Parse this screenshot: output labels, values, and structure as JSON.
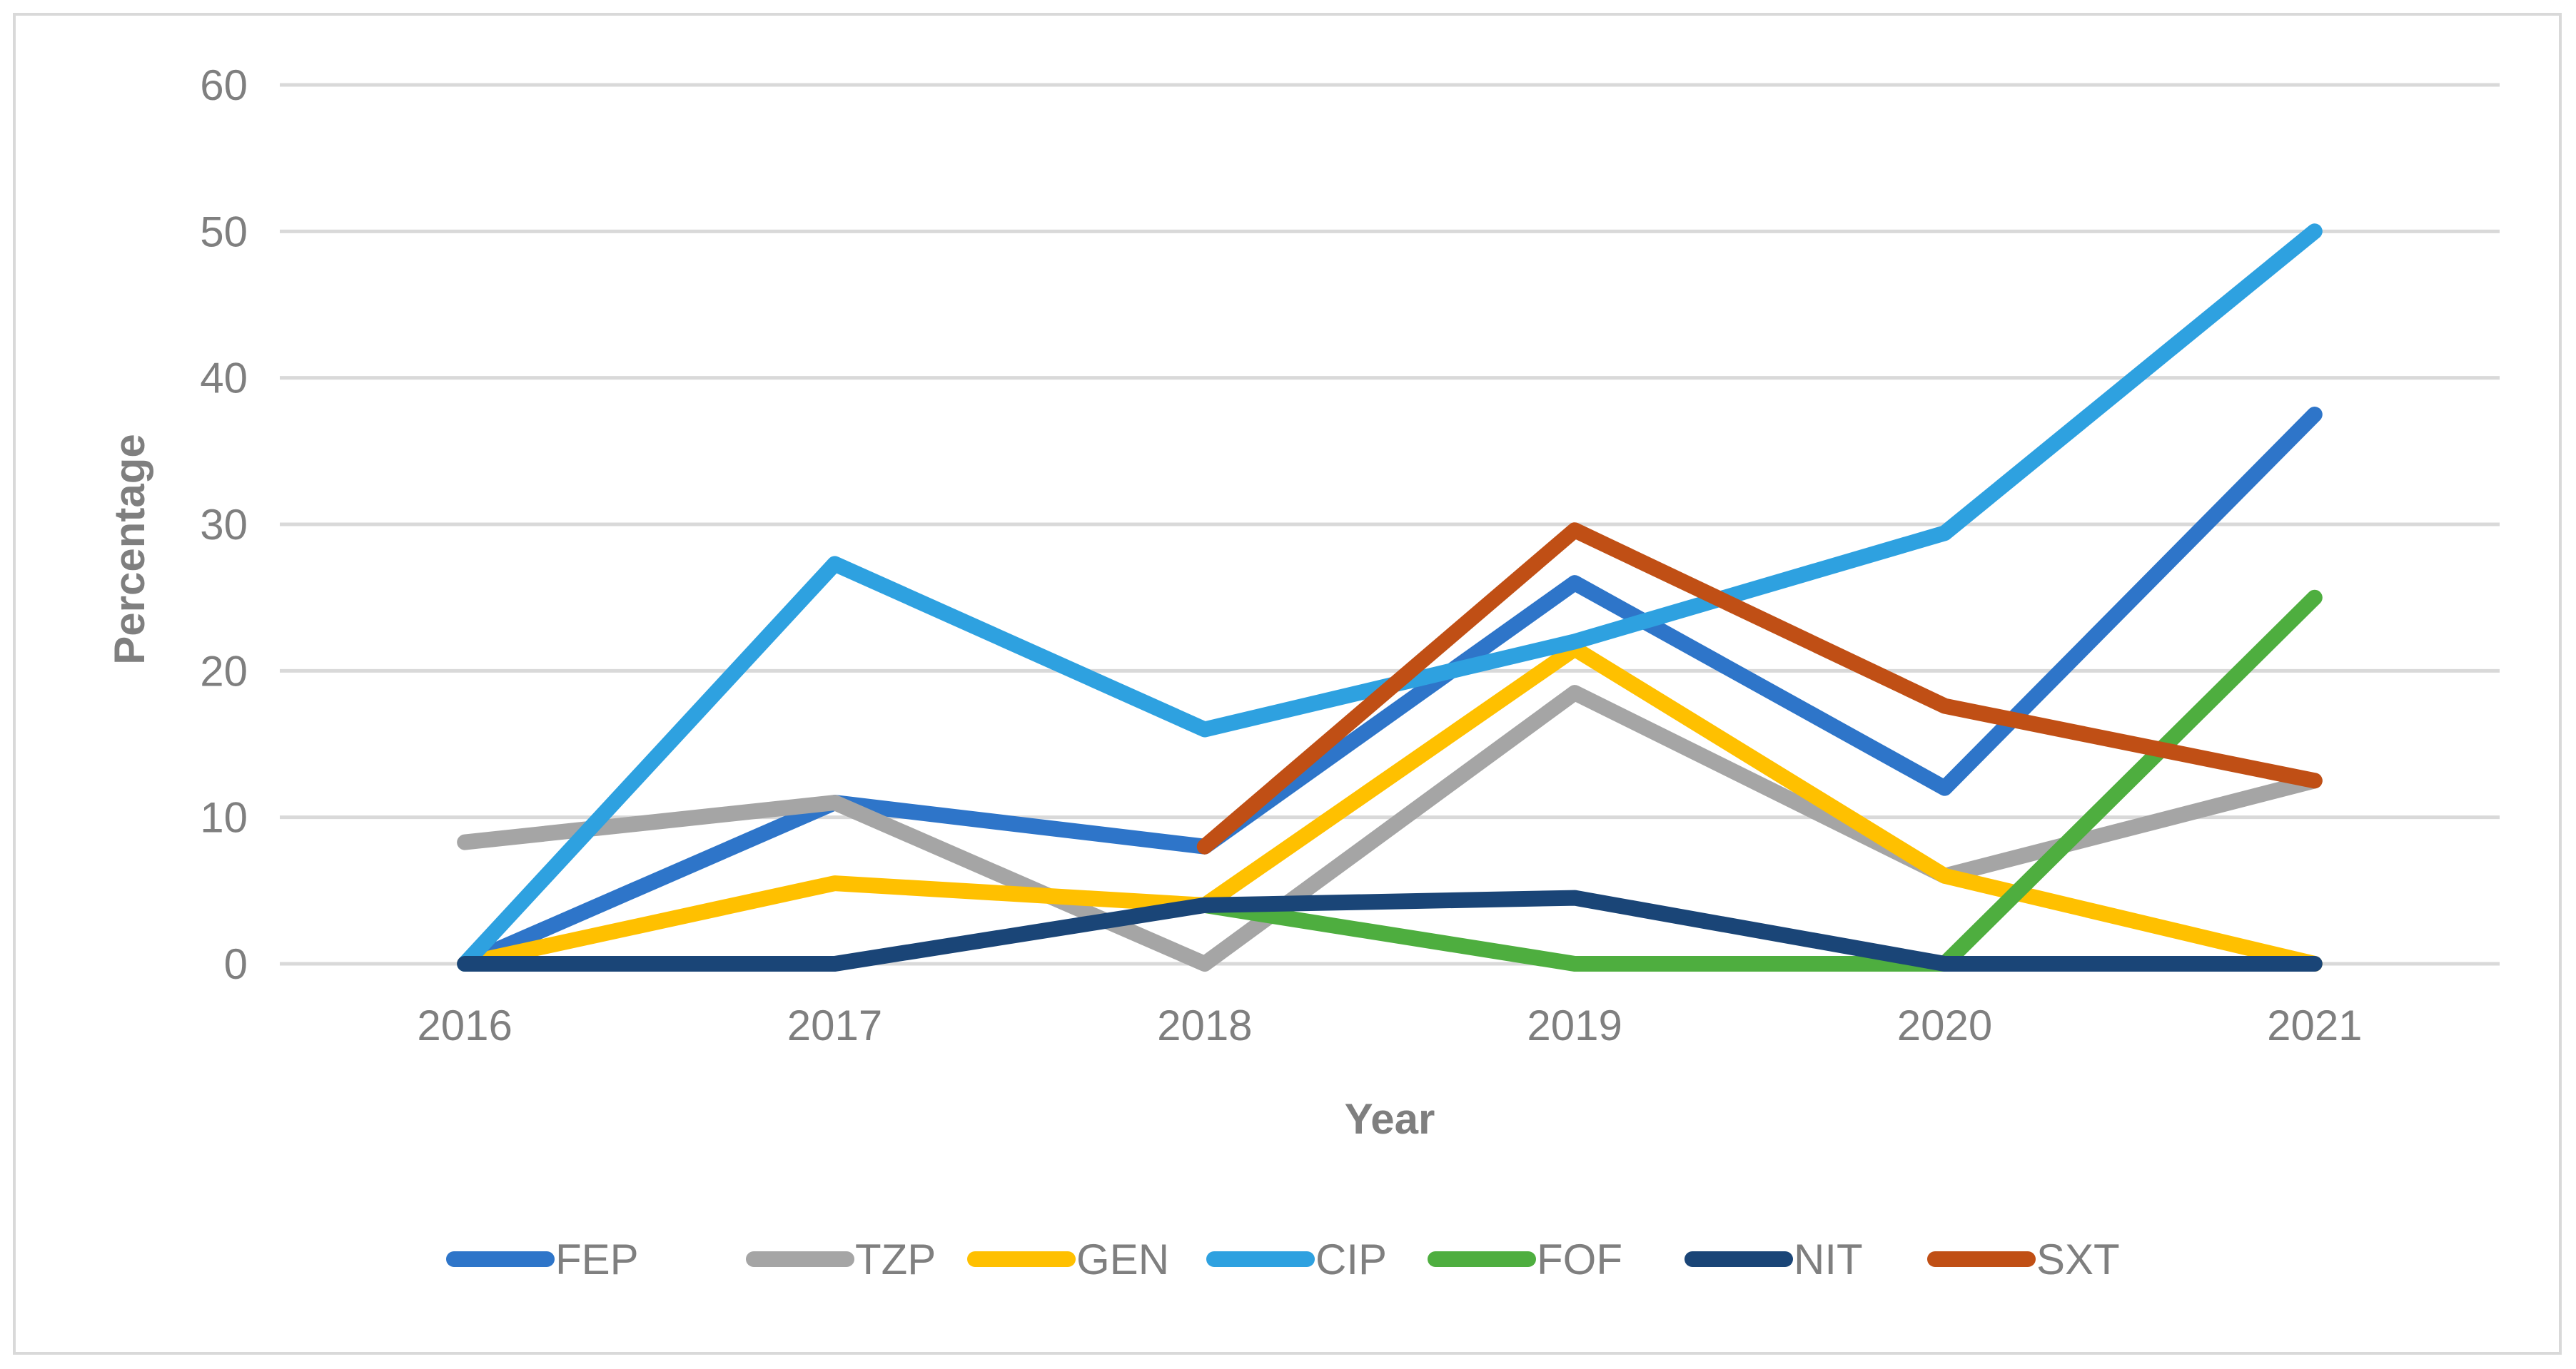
{
  "chart_data": {
    "type": "line",
    "title": "",
    "xlabel": "Year",
    "ylabel": "Percentage",
    "categories": [
      "2016",
      "2017",
      "2018",
      "2019",
      "2020",
      "2021"
    ],
    "y_ticks": [
      "0",
      "10",
      "20",
      "30",
      "40",
      "50",
      "60"
    ],
    "ylim": [
      0,
      60
    ],
    "grid": true,
    "legend_position": "bottom",
    "series": [
      {
        "name": "FEP",
        "color": "#2e75c9",
        "values": [
          0,
          11,
          8,
          26,
          12,
          37.5
        ]
      },
      {
        "name": "TZP",
        "color": "#a5a5a5",
        "values": [
          8.3,
          11,
          0,
          18.5,
          6,
          12.5
        ]
      },
      {
        "name": "GEN",
        "color": "#ffc000",
        "values": [
          0,
          5.5,
          4,
          21.5,
          6,
          0
        ]
      },
      {
        "name": "CIP",
        "color": "#2ea1e0",
        "values": [
          0,
          27.3,
          16,
          22,
          29.4,
          50
        ]
      },
      {
        "name": "FOF",
        "color": "#4eae3f",
        "values": [
          null,
          null,
          4,
          0,
          0,
          25
        ]
      },
      {
        "name": "NIT",
        "color": "#1a4577",
        "values": [
          0,
          0,
          4,
          4.5,
          0,
          0
        ]
      },
      {
        "name": "SXT",
        "color": "#c04f15",
        "values": [
          null,
          null,
          8,
          29.6,
          17.6,
          12.5
        ]
      }
    ]
  }
}
